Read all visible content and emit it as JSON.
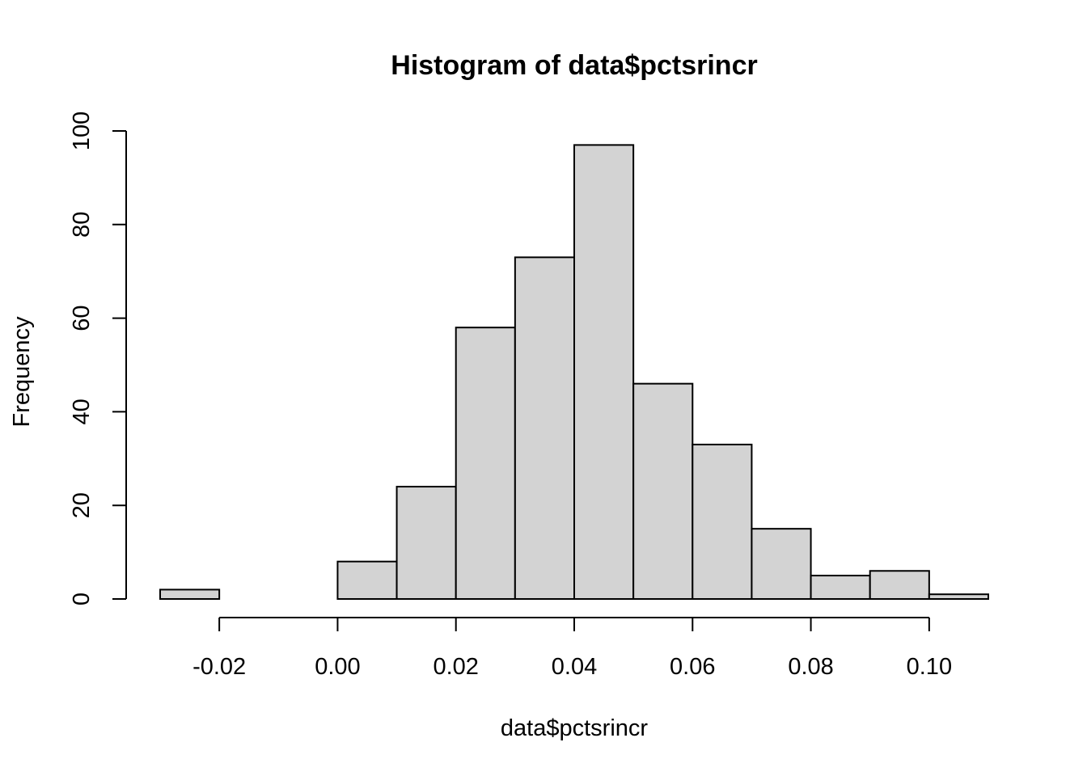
{
  "chart_data": {
    "type": "bar",
    "title": "Histogram of data$pctsrincr",
    "xlabel": "data$pctsrincr",
    "ylabel": "Frequency",
    "bins": [
      {
        "x0": -0.03,
        "x1": -0.02,
        "count": 2
      },
      {
        "x0": -0.02,
        "x1": -0.01,
        "count": 0
      },
      {
        "x0": -0.01,
        "x1": 0.0,
        "count": 0
      },
      {
        "x0": 0.0,
        "x1": 0.01,
        "count": 8
      },
      {
        "x0": 0.01,
        "x1": 0.02,
        "count": 24
      },
      {
        "x0": 0.02,
        "x1": 0.03,
        "count": 58
      },
      {
        "x0": 0.03,
        "x1": 0.04,
        "count": 73
      },
      {
        "x0": 0.04,
        "x1": 0.05,
        "count": 97
      },
      {
        "x0": 0.05,
        "x1": 0.06,
        "count": 46
      },
      {
        "x0": 0.06,
        "x1": 0.07,
        "count": 33
      },
      {
        "x0": 0.07,
        "x1": 0.08,
        "count": 15
      },
      {
        "x0": 0.08,
        "x1": 0.09,
        "count": 5
      },
      {
        "x0": 0.09,
        "x1": 0.1,
        "count": 6
      },
      {
        "x0": 0.1,
        "x1": 0.11,
        "count": 1
      }
    ],
    "xticks": [
      -0.02,
      0.0,
      0.02,
      0.04,
      0.06,
      0.08,
      0.1
    ],
    "xtick_labels": [
      "-0.02",
      "0.00",
      "0.02",
      "0.04",
      "0.06",
      "0.08",
      "0.10"
    ],
    "yticks": [
      0,
      20,
      40,
      60,
      80,
      100
    ],
    "ytick_labels": [
      "0",
      "20",
      "40",
      "60",
      "80",
      "100"
    ],
    "xlim": [
      -0.03,
      0.11
    ],
    "ylim": [
      0,
      100
    ],
    "bar_color": "#d3d3d3",
    "edge_color": "#000000",
    "grid": false
  }
}
